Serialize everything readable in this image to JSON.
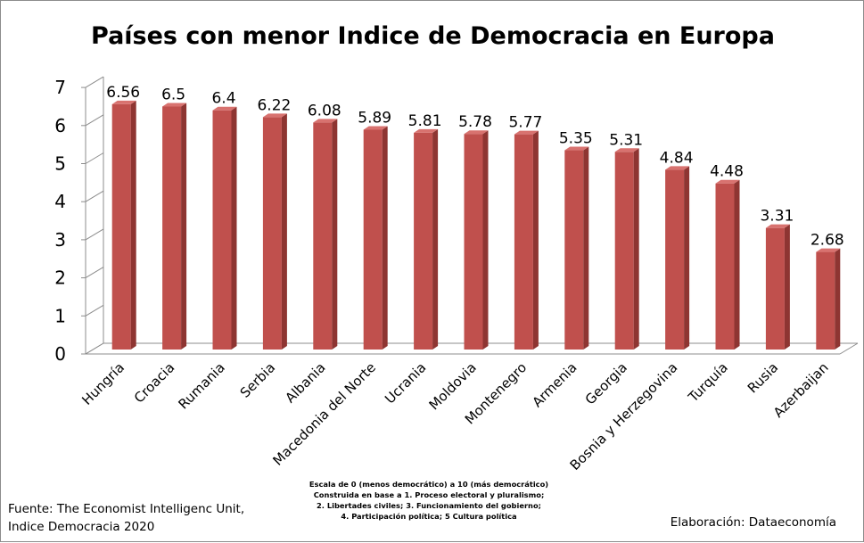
{
  "chart_data": {
    "type": "bar",
    "title": "Países con menor Indice de Democracia en Europa",
    "categories": [
      "Hungría",
      "Croacia",
      "Rumania",
      "Serbia",
      "Albania",
      "Macedonia del Norte",
      "Ucrania",
      "Moldovia",
      "Montenegro",
      "Armenia",
      "Georgia",
      "Bosnia y Herzegovina",
      "Turquía",
      "Rusia",
      "Azerbaijan"
    ],
    "values": [
      6.56,
      6.5,
      6.4,
      6.22,
      6.08,
      5.89,
      5.81,
      5.78,
      5.77,
      5.35,
      5.31,
      4.84,
      4.48,
      3.31,
      2.68
    ],
    "data_labels": [
      "6.56",
      "6.5",
      "6.4",
      "6.22",
      "6.08",
      "5.89",
      "5.81",
      "5.78",
      "5.77",
      "5.35",
      "5.31",
      "4.84",
      "4.48",
      "3.31",
      "2.68"
    ],
    "y_ticks": [
      "0",
      "1",
      "2",
      "3",
      "4",
      "5",
      "6",
      "7"
    ],
    "ylim": [
      0,
      7
    ],
    "grid": false,
    "legend": "none",
    "style": "3d-bar",
    "bar_color": "#c0504d",
    "xlabel": "",
    "ylabel": ""
  },
  "footer": {
    "source_line1": "Fuente: The Economist Intelligenc Unit,",
    "source_line2": "Indice Democracia 2020",
    "credit": "Elaboración: Dataeconomía",
    "scale_note": [
      "Escala de 0 (menos democrático) a 10 (más democrático)",
      "Construida en base a 1. Proceso electoral y pluralismo;",
      "2. Libertades civiles; 3. Funcionamiento del gobierno;",
      "4. Participación política; 5 Cultura política"
    ]
  }
}
